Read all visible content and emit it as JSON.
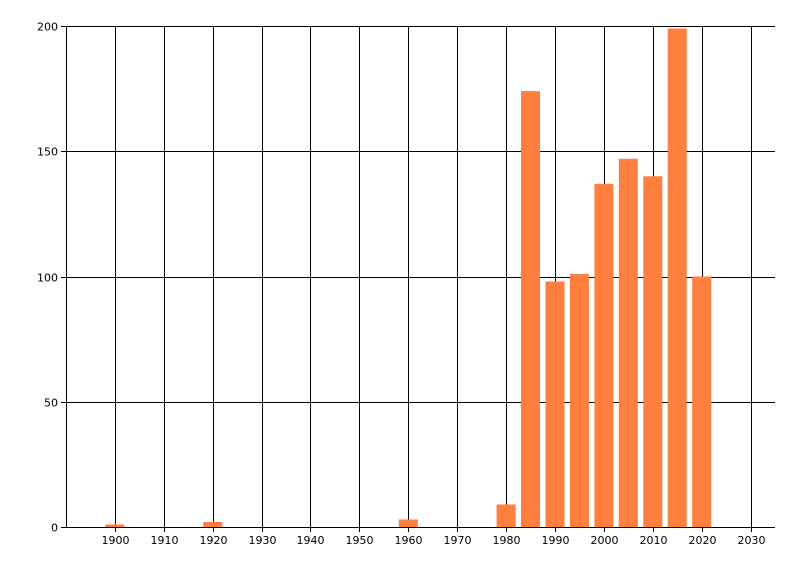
{
  "chart_data": {
    "type": "bar",
    "title": "",
    "xlabel": "",
    "ylabel": "",
    "x": [
      1900,
      1920,
      1960,
      1980,
      1985,
      1990,
      1995,
      2000,
      2005,
      2010,
      2015,
      2020
    ],
    "values": [
      1,
      2,
      3,
      9,
      174,
      98,
      101,
      137,
      147,
      140,
      199,
      100
    ],
    "xlim": [
      1890,
      2035
    ],
    "ylim": [
      0,
      200
    ],
    "x_ticks": [
      1900,
      1910,
      1920,
      1930,
      1940,
      1950,
      1960,
      1970,
      1980,
      1990,
      2000,
      2010,
      2020,
      2030
    ],
    "y_ticks": [
      0,
      50,
      100,
      150,
      200
    ],
    "x_tick_labels": [
      "1900",
      "1910",
      "1920",
      "1930",
      "1940",
      "1950",
      "1960",
      "1970",
      "1980",
      "1990",
      "2000",
      "2010",
      "2020",
      "2030"
    ],
    "y_tick_labels": [
      "0",
      "50",
      "100",
      "150",
      "200"
    ],
    "grid": true,
    "legend": "none",
    "bar_color": "#ff7f3f",
    "grid_color": "#000000",
    "axis_color": "#000000"
  }
}
